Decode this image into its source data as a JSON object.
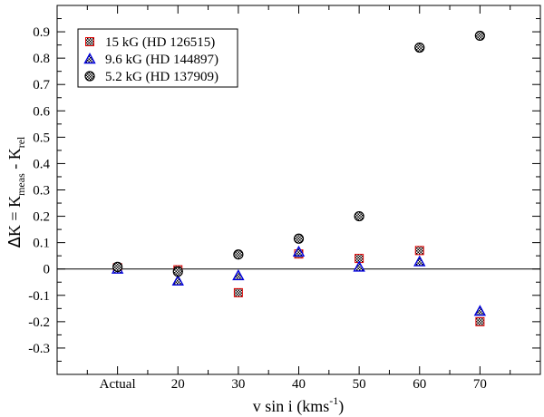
{
  "chart_data": {
    "type": "scatter",
    "title": "",
    "xlabel_main": "v sin i (kms",
    "xlabel_sup": "-1",
    "xlabel_close": ")",
    "ylabel_parts": {
      "delta": "Δ",
      "k_eq": "K = K",
      "sub_meas": "meas",
      "minus": " - K",
      "sub_rel": "rel"
    },
    "categories": [
      "Actual",
      "20",
      "30",
      "40",
      "50",
      "60",
      "70"
    ],
    "x_index": [
      1,
      2,
      3,
      4,
      5,
      6,
      7
    ],
    "xlim": [
      0,
      8
    ],
    "ylim": [
      -0.4,
      1.0
    ],
    "y_ticks": [
      -0.3,
      -0.2,
      -0.1,
      0,
      0.1,
      0.2,
      0.3,
      0.4,
      0.5,
      0.6,
      0.7,
      0.8,
      0.9
    ],
    "y_tick_labels": [
      "-0.3",
      "-0.2",
      "-0.1",
      "0",
      "0.1",
      "0.2",
      "0.3",
      "0.4",
      "0.5",
      "0.6",
      "0.7",
      "0.8",
      "0.9"
    ],
    "zero_line": true,
    "legend_position": "top-left",
    "series": [
      {
        "name": "15  kG (HD 126515)",
        "marker": "square",
        "color": "#e00000",
        "values": [
          0.005,
          -0.003,
          -0.09,
          0.057,
          0.04,
          0.07,
          -0.2
        ]
      },
      {
        "name": "9.6 kG (HD 144897)",
        "marker": "triangle",
        "color": "#0000dd",
        "values": [
          0.0,
          -0.045,
          -0.025,
          0.065,
          0.008,
          0.028,
          -0.16
        ]
      },
      {
        "name": "5.2 kG (HD 137909)",
        "marker": "circle",
        "color": "#000000",
        "values": [
          0.008,
          -0.01,
          0.055,
          0.115,
          0.2,
          0.84,
          0.885
        ]
      }
    ]
  }
}
